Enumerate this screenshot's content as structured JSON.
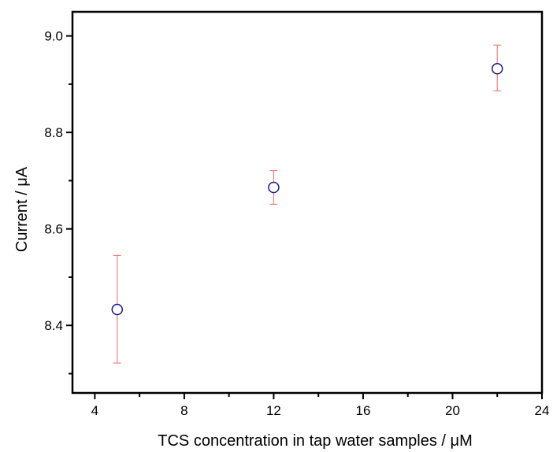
{
  "chart_data": {
    "type": "scatter",
    "title": "",
    "xlabel": "TCS concentration in tap water samples / μM",
    "ylabel": "Current / μA",
    "xlim": [
      3,
      24
    ],
    "ylim": [
      8.26,
      9.05
    ],
    "x_ticks": [
      4,
      8,
      12,
      16,
      20,
      24
    ],
    "x_tick_labels": [
      "4",
      "8",
      "12",
      "16",
      "20",
      "24"
    ],
    "y_ticks": [
      8.4,
      8.6,
      8.8,
      9.0
    ],
    "y_tick_labels": [
      "8.4",
      "8.6",
      "8.8",
      "9.0"
    ],
    "grid": false,
    "legend": "none",
    "series": [
      {
        "x": [
          5,
          12,
          22
        ],
        "y": [
          8.433,
          8.686,
          8.932
        ],
        "err_upper": [
          8.545,
          8.721,
          8.981
        ],
        "err_lower": [
          8.322,
          8.651,
          8.886
        ]
      }
    ],
    "colors": {
      "marker": "#1a1a8c",
      "error_bar": "#f08080",
      "axis": "#000000"
    }
  }
}
